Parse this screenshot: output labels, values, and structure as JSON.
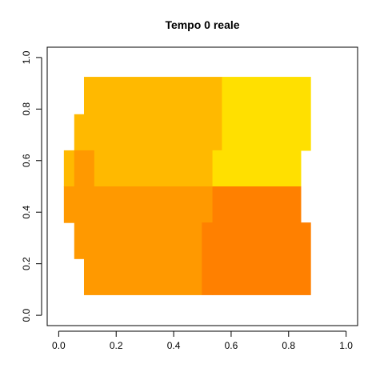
{
  "chart_data": {
    "type": "heatmap",
    "title": "Tempo 0 reale",
    "xlabel": "",
    "ylabel": "",
    "xlim": [
      -0.04,
      1.04
    ],
    "ylim": [
      -0.04,
      1.04
    ],
    "x_ticks": [
      0.0,
      0.2,
      0.4,
      0.6,
      0.8,
      1.0
    ],
    "x_tick_labels": [
      "0.0",
      "0.2",
      "0.4",
      "0.6",
      "0.8",
      "1.0"
    ],
    "y_ticks": [
      0.0,
      0.2,
      0.4,
      0.6,
      0.8,
      1.0
    ],
    "y_tick_labels": [
      "0.0",
      "0.2",
      "0.4",
      "0.6",
      "0.8",
      "1.0"
    ],
    "grid": false,
    "legend": "none",
    "colors": {
      "yellow": "#FFE000",
      "light_orange": "#FFB900",
      "orange": "#FF9900",
      "dark_orange": "#FF8000"
    },
    "regions": [
      {
        "color": "light_orange",
        "x0": 0.088,
        "x1": 0.568,
        "y0": 0.78,
        "y1": 0.925
      },
      {
        "color": "light_orange",
        "x0": 0.054,
        "x1": 0.568,
        "y0": 0.64,
        "y1": 0.78
      },
      {
        "color": "light_orange",
        "x0": 0.018,
        "x1": 0.054,
        "y0": 0.5,
        "y1": 0.64
      },
      {
        "color": "light_orange",
        "x0": 0.122,
        "x1": 0.535,
        "y0": 0.5,
        "y1": 0.64
      },
      {
        "color": "orange",
        "x0": 0.054,
        "x1": 0.122,
        "y0": 0.5,
        "y1": 0.64
      },
      {
        "color": "orange",
        "x0": 0.018,
        "x1": 0.535,
        "y0": 0.36,
        "y1": 0.5
      },
      {
        "color": "orange",
        "x0": 0.054,
        "x1": 0.498,
        "y0": 0.22,
        "y1": 0.36
      },
      {
        "color": "orange",
        "x0": 0.088,
        "x1": 0.498,
        "y0": 0.08,
        "y1": 0.22
      },
      {
        "color": "yellow",
        "x0": 0.568,
        "x1": 0.876,
        "y0": 0.64,
        "y1": 0.925
      },
      {
        "color": "yellow",
        "x0": 0.535,
        "x1": 0.842,
        "y0": 0.5,
        "y1": 0.64
      },
      {
        "color": "dark_orange",
        "x0": 0.535,
        "x1": 0.842,
        "y0": 0.36,
        "y1": 0.5
      },
      {
        "color": "dark_orange",
        "x0": 0.498,
        "x1": 0.535,
        "y0": 0.08,
        "y1": 0.36
      },
      {
        "color": "dark_orange",
        "x0": 0.535,
        "x1": 0.876,
        "y0": 0.08,
        "y1": 0.36
      }
    ]
  }
}
